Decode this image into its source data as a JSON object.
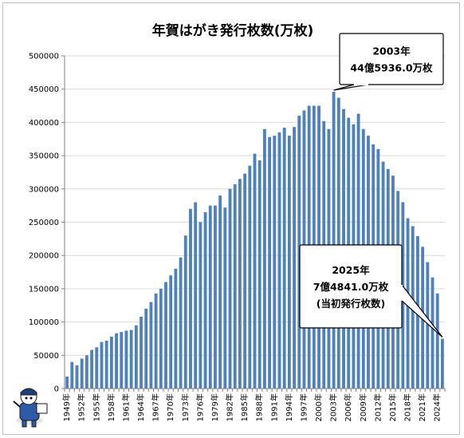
{
  "chart_data": {
    "type": "bar",
    "title": "年賀はがき発行枚数(万枚)",
    "xlabel": "",
    "ylabel": "",
    "ylim": [
      0,
      500000
    ],
    "yticks": [
      0,
      50000,
      100000,
      150000,
      200000,
      250000,
      300000,
      350000,
      400000,
      450000,
      500000
    ],
    "grid": true,
    "legend": "none",
    "colors": {
      "bar": "#4f81bd",
      "grid": "#d9d9d9",
      "axis": "#808080"
    },
    "x_tick_labels": [
      "1949年",
      "1952年",
      "1955年",
      "1958年",
      "1961年",
      "1964年",
      "1967年",
      "1970年",
      "1973年",
      "1976年",
      "1979年",
      "1982年",
      "1985年",
      "1988年",
      "1991年",
      "1994年",
      "1997年",
      "2000年",
      "2003年",
      "2006年",
      "2009年",
      "2012年",
      "2015年",
      "2018年",
      "2021年",
      "2024年"
    ],
    "categories": [
      "1949年",
      "1950年",
      "1951年",
      "1952年",
      "1953年",
      "1954年",
      "1955年",
      "1956年",
      "1957年",
      "1958年",
      "1959年",
      "1960年",
      "1961年",
      "1962年",
      "1963年",
      "1964年",
      "1965年",
      "1966年",
      "1967年",
      "1968年",
      "1969年",
      "1970年",
      "1971年",
      "1972年",
      "1973年",
      "1974年",
      "1975年",
      "1976年",
      "1977年",
      "1978年",
      "1979年",
      "1980年",
      "1981年",
      "1982年",
      "1983年",
      "1984年",
      "1985年",
      "1986年",
      "1987年",
      "1988年",
      "1989年",
      "1990年",
      "1991年",
      "1992年",
      "1993年",
      "1994年",
      "1995年",
      "1996年",
      "1997年",
      "1998年",
      "1999年",
      "2000年",
      "2001年",
      "2002年",
      "2003年",
      "2004年",
      "2005年",
      "2006年",
      "2007年",
      "2008年",
      "2009年",
      "2010年",
      "2011年",
      "2012年",
      "2013年",
      "2014年",
      "2015年",
      "2016年",
      "2017年",
      "2018年",
      "2019年",
      "2020年",
      "2021年",
      "2022年",
      "2023年",
      "2024年",
      "2025年"
    ],
    "values": [
      18000,
      40000,
      35000,
      45000,
      50000,
      58000,
      62000,
      70000,
      72000,
      78000,
      83000,
      85000,
      87000,
      88000,
      95000,
      108000,
      120000,
      130000,
      143000,
      150000,
      160000,
      170000,
      180000,
      197000,
      230000,
      270000,
      280000,
      250000,
      265000,
      275000,
      275000,
      290000,
      272000,
      300000,
      307000,
      315000,
      323000,
      335000,
      353000,
      343000,
      390000,
      378000,
      380000,
      385000,
      392000,
      380000,
      393000,
      410000,
      418000,
      425000,
      425000,
      425000,
      402000,
      390000,
      445936,
      437000,
      420000,
      407000,
      397000,
      413000,
      390000,
      380000,
      367000,
      360000,
      341000,
      330000,
      320000,
      297000,
      280000,
      256000,
      244000,
      229000,
      213000,
      190000,
      167000,
      143000,
      74841
    ],
    "annotations": [
      {
        "category": "2003年",
        "lines": [
          "2003年",
          "44億5936.0万枚"
        ]
      },
      {
        "category": "2025年",
        "lines": [
          "2025年",
          "7億4841.0万枚",
          "(当初発行枚数)"
        ]
      }
    ]
  }
}
